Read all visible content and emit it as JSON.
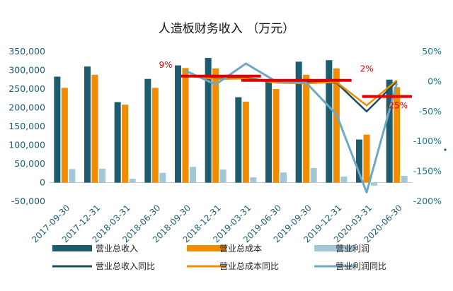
{
  "chart_data": {
    "type": "bar",
    "title": "人造板财务收入 （万元）",
    "categories": [
      "2017-09-30",
      "2017-12-31",
      "2018-03-31",
      "2018-06-30",
      "2018-09-30",
      "2018-12-31",
      "2019-03-31",
      "2019-06-30",
      "2019-09-30",
      "2019-12-31",
      "2020-03-31",
      "2020-06-30"
    ],
    "bar_series": [
      {
        "name": "营业总收入",
        "color": "#1d5c6e",
        "values": [
          283000,
          310000,
          215000,
          277000,
          313000,
          333000,
          228000,
          273000,
          323000,
          327000,
          115000,
          275000
        ]
      },
      {
        "name": "营业总成本",
        "color": "#f08c00",
        "values": [
          253000,
          288000,
          208000,
          253000,
          306000,
          305000,
          216000,
          250000,
          288000,
          305000,
          128000,
          255000
        ]
      },
      {
        "name": "营业利润",
        "color": "#a3c7d9",
        "values": [
          36000,
          37000,
          10000,
          26000,
          42000,
          35000,
          14000,
          27000,
          39000,
          16000,
          -8000,
          18000
        ]
      }
    ],
    "line_series": [
      {
        "name": "营业总收入同比",
        "color": "#1a4d5e",
        "values": [
          null,
          null,
          null,
          null,
          10,
          5,
          6,
          -1,
          -1,
          -2,
          -50,
          0
        ]
      },
      {
        "name": "营业总成本同比",
        "color": "#f08c00",
        "values": [
          null,
          null,
          null,
          null,
          10,
          4,
          5,
          -2,
          -3,
          -1,
          -40,
          2
        ]
      },
      {
        "name": "营业利润同比",
        "color": "#6fa8c3",
        "values": [
          null,
          null,
          null,
          null,
          18,
          -5,
          30,
          0,
          -2,
          -55,
          -185,
          -3
        ]
      }
    ],
    "left_axis": {
      "min": -50000,
      "max": 350000,
      "ticks": [
        "-50,000",
        "0",
        "50,000",
        "100,000",
        "150,000",
        "200,000",
        "250,000",
        "300,000",
        "350,000"
      ]
    },
    "right_axis": {
      "min": -200,
      "max": 50,
      "ticks": [
        "-200%",
        "-150%",
        "-100%",
        "-50%",
        "0%",
        "50%"
      ]
    },
    "annotations": [
      {
        "label": "9%",
        "value": 9,
        "from_index": 4,
        "to_index": 6
      },
      {
        "label": "2%",
        "value": 2,
        "from_index": 6,
        "to_index": 9
      },
      {
        "label": "-25%",
        "value": -25,
        "from_index": 10,
        "to_index": 11
      }
    ],
    "annotation_color": "#e00000",
    "legend_position": "bottom",
    "grid": false
  }
}
